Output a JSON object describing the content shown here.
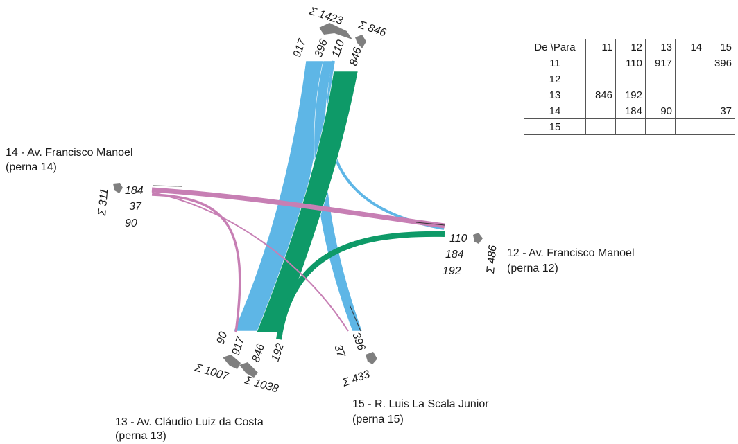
{
  "colors": {
    "blue": "#5eb6e6",
    "green": "#0e9a68",
    "pink": "#c77fb4",
    "gray": "#7f7f7f"
  },
  "labels": {
    "leg14_name": "14 - Av. Francisco Manoel",
    "leg14_sub": "(perna 14)",
    "leg12_name": "12 - Av. Francisco Manoel",
    "leg12_sub": "(perna 12)",
    "leg13_name": "13 - Av. Cláudio Luiz da Costa",
    "leg13_sub": "(perna 13)",
    "leg15_name": "15 - R. Luis La Scala Junior",
    "leg15_sub": "(perna 15)"
  },
  "numbers": {
    "top_917": "917",
    "top_396": "396",
    "top_110": "110",
    "top_846": "846",
    "top_sum_out": "Σ 1423",
    "top_sum_in": "Σ 846",
    "left_184": "184",
    "left_37": "37",
    "left_90": "90",
    "left_sum": "Σ 311",
    "right_110": "110",
    "right_184": "184",
    "right_192": "192",
    "right_sum": "Σ 486",
    "bot_90": "90",
    "bot_917": "917",
    "bot_846": "846",
    "bot_192": "192",
    "bot_sum_in": "Σ 1007",
    "bot_sum_out": "Σ 1038",
    "b15_37": "37",
    "b15_396": "396",
    "b15_sum": "Σ 433"
  },
  "table": {
    "header": [
      "De \\Para",
      "11",
      "12",
      "13",
      "14",
      "15"
    ],
    "rows": [
      [
        "11",
        "",
        "110",
        "917",
        "",
        "396"
      ],
      [
        "12",
        "",
        "",
        "",
        "",
        ""
      ],
      [
        "13",
        "846",
        "192",
        "",
        "",
        ""
      ],
      [
        "14",
        "",
        "184",
        "90",
        "",
        "37"
      ],
      [
        "15",
        "",
        "",
        "",
        "",
        ""
      ]
    ]
  }
}
